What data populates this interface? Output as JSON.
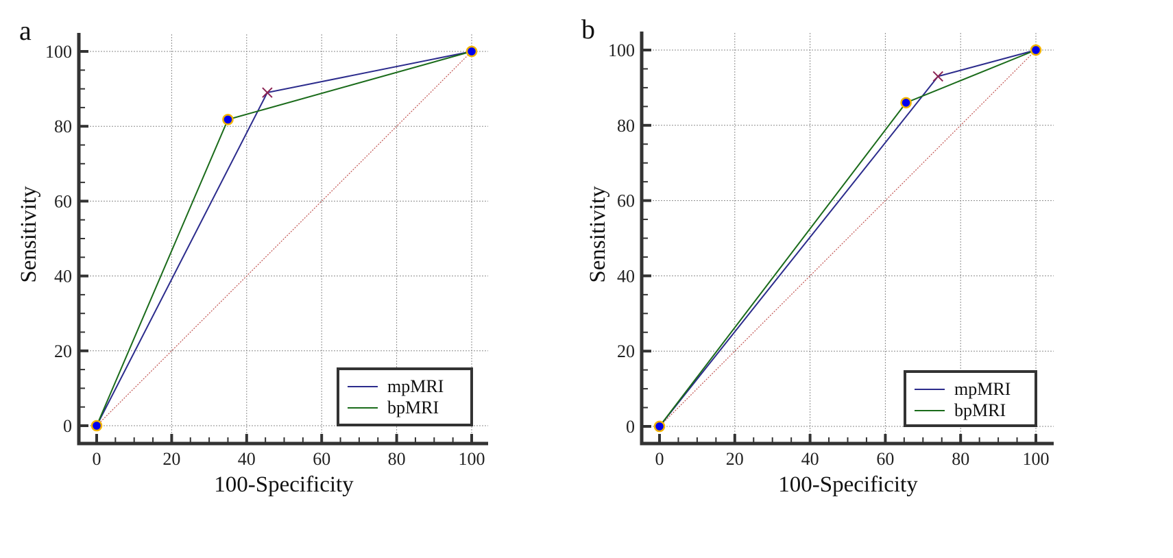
{
  "colors": {
    "mpMRI": "#2b2b8c",
    "bpMRI": "#1a6b1a",
    "diagonal": "#c0504d",
    "marker_fill": "#0000ee",
    "marker_edge": "#f2b400",
    "cross": "#8b2252"
  },
  "chart_data": [
    {
      "panel": "a",
      "type": "line",
      "xlabel": "100-Specificity",
      "ylabel": "Sensitivity",
      "xlim": [
        0,
        100
      ],
      "ylim": [
        0,
        100
      ],
      "xticks": [
        "0",
        "20",
        "40",
        "60",
        "80",
        "100"
      ],
      "yticks": [
        "0",
        "20",
        "40",
        "60",
        "80",
        "100"
      ],
      "grid": true,
      "legend_position": "bottom-right",
      "series": [
        {
          "name": "mpMRI",
          "x": [
            0,
            45.5,
            100
          ],
          "y": [
            0,
            89,
            100
          ],
          "marker": "cross"
        },
        {
          "name": "bpMRI",
          "x": [
            0,
            35,
            100
          ],
          "y": [
            0,
            81.8,
            100
          ],
          "marker": "circle"
        }
      ],
      "reference_line": {
        "x": [
          0,
          100
        ],
        "y": [
          0,
          100
        ]
      }
    },
    {
      "panel": "b",
      "type": "line",
      "xlabel": "100-Specificity",
      "ylabel": "Sensitivity",
      "xlim": [
        0,
        100
      ],
      "ylim": [
        0,
        100
      ],
      "xticks": [
        "0",
        "20",
        "40",
        "60",
        "80",
        "100"
      ],
      "yticks": [
        "0",
        "20",
        "40",
        "60",
        "80",
        "100"
      ],
      "grid": true,
      "legend_position": "bottom-right",
      "series": [
        {
          "name": "mpMRI",
          "x": [
            0,
            74,
            100
          ],
          "y": [
            0,
            93,
            100
          ],
          "marker": "cross"
        },
        {
          "name": "bpMRI",
          "x": [
            0,
            65.5,
            100
          ],
          "y": [
            0,
            86,
            100
          ],
          "marker": "circle"
        }
      ],
      "reference_line": {
        "x": [
          0,
          100
        ],
        "y": [
          0,
          100
        ]
      }
    }
  ]
}
